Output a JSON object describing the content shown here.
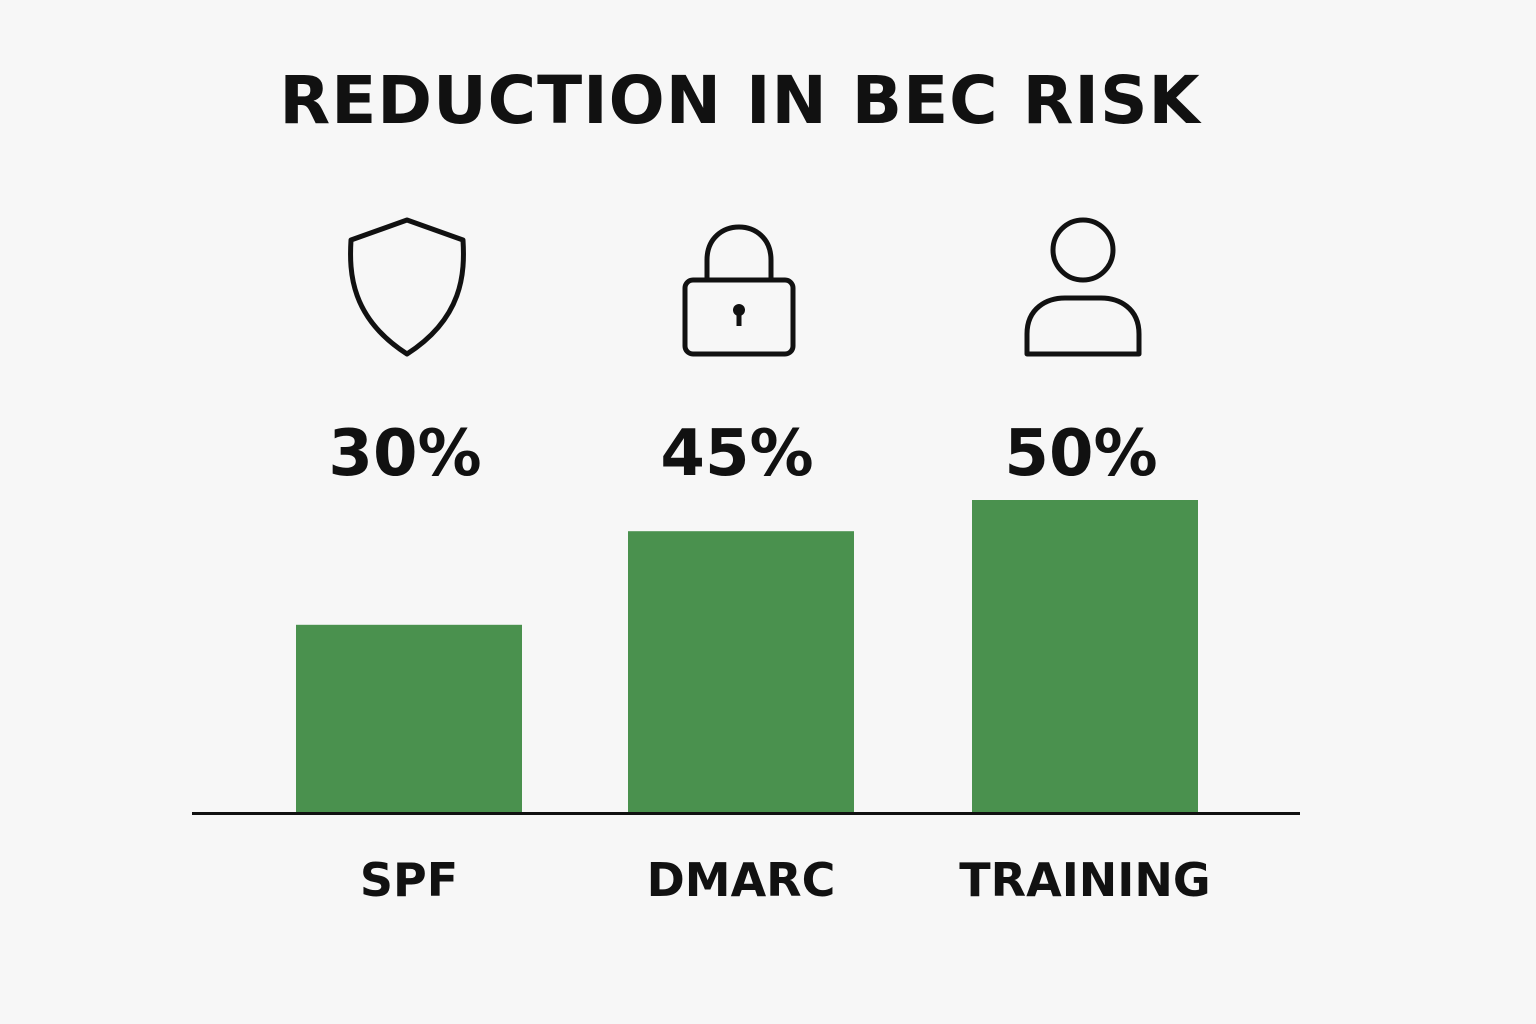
{
  "chart_data": {
    "type": "bar",
    "title": "REDUCTION IN BEC RISK",
    "categories": [
      "SPF",
      "DMARC",
      "TRAINING"
    ],
    "values": [
      30,
      45,
      50
    ],
    "value_labels": [
      "30%",
      "45%",
      "50%"
    ],
    "icons": [
      "shield-icon",
      "lock-icon",
      "user-icon"
    ],
    "xlabel": "",
    "ylabel": "",
    "grid": false,
    "bar_color": "#4a914e",
    "axis_color": "#111111"
  }
}
